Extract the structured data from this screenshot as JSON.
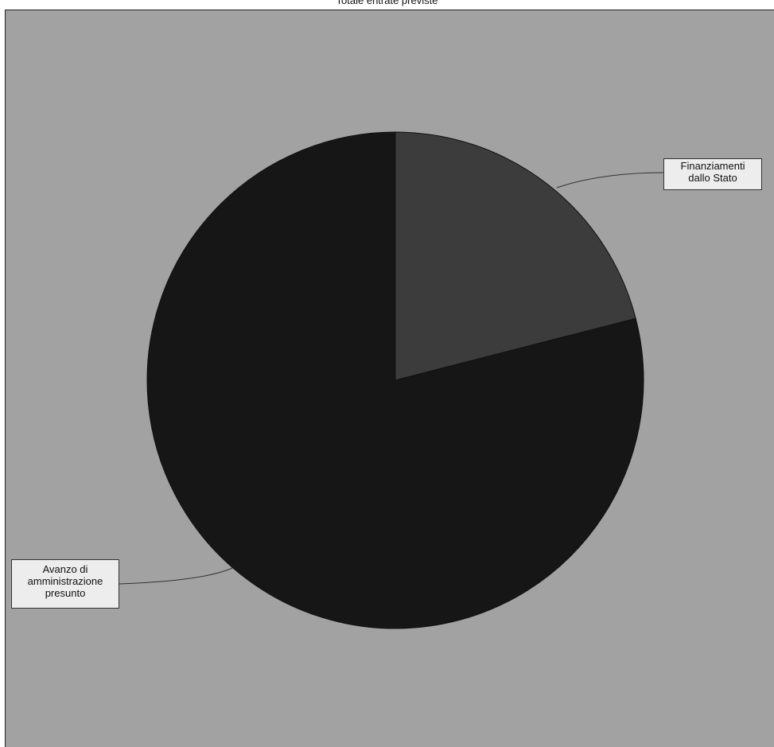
{
  "chart_data": {
    "type": "pie",
    "title": "Totale entrate previste",
    "categories": [
      "Finanziamenti dallo Stato",
      "Avanzo di amministrazione presunto"
    ],
    "values": [
      21,
      79
    ],
    "colors": [
      "#3c3c3c",
      "#161616"
    ],
    "background": "#a2a2a2",
    "start_angle_deg": 0,
    "direction": "clockwise",
    "labels": {
      "finanziamenti": [
        "Finanziamenti",
        "dallo Stato"
      ],
      "avanzo": [
        "Avanzo di",
        "amministrazione",
        "presunto"
      ]
    }
  }
}
